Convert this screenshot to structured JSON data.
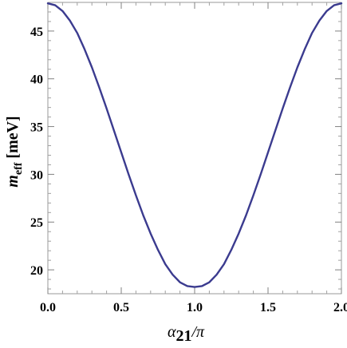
{
  "chart_data": {
    "type": "line",
    "xlabel": {
      "base": "α",
      "sub": "21",
      "rest": "/π"
    },
    "ylabel": {
      "base": "m",
      "sub": "eff",
      "rest": " [meV]"
    },
    "xlim": [
      0.0,
      2.0
    ],
    "ylim": [
      17.5,
      48.0
    ],
    "x_ticks": [
      "0.0",
      "0.5",
      "1.0",
      "1.5",
      "2.0"
    ],
    "y_ticks": [
      "20",
      "25",
      "30",
      "35",
      "40",
      "45"
    ],
    "grid": false,
    "series": [
      {
        "color": "#3b3b8f",
        "x": [
          0.0,
          0.05,
          0.1,
          0.15,
          0.2,
          0.25,
          0.3,
          0.35,
          0.4,
          0.45,
          0.5,
          0.55,
          0.6,
          0.65,
          0.7,
          0.75,
          0.8,
          0.85,
          0.9,
          0.95,
          1.0,
          1.05,
          1.1,
          1.15,
          1.2,
          1.25,
          1.3,
          1.35,
          1.4,
          1.45,
          1.5,
          1.55,
          1.6,
          1.65,
          1.7,
          1.75,
          1.8,
          1.85,
          1.9,
          1.95,
          2.0
        ],
        "y": [
          47.9,
          47.7,
          47.1,
          46.1,
          44.8,
          43.1,
          41.2,
          39.1,
          36.9,
          34.6,
          32.3,
          30.0,
          27.8,
          25.7,
          23.8,
          22.1,
          20.6,
          19.5,
          18.7,
          18.3,
          18.2,
          18.3,
          18.7,
          19.5,
          20.6,
          22.1,
          23.8,
          25.7,
          27.8,
          30.0,
          32.3,
          34.6,
          36.9,
          39.1,
          41.2,
          43.1,
          44.8,
          46.1,
          47.1,
          47.7,
          47.9
        ]
      }
    ]
  }
}
